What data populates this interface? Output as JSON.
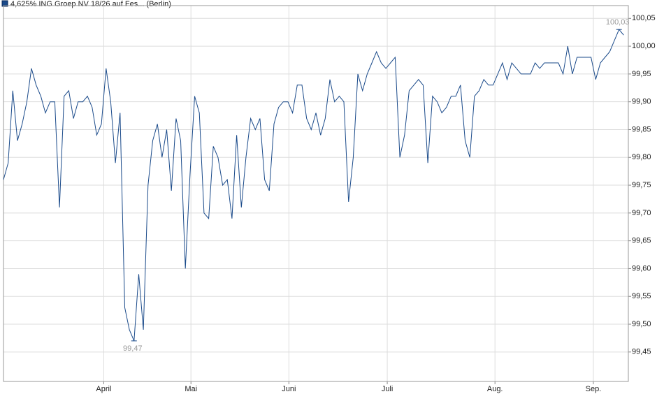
{
  "chart_data": {
    "type": "line",
    "title": "4,625% ING Groep NV 18/26 auf Fes... (Berlin)",
    "series": [
      {
        "name": "4,625% ING Groep NV 18/26 auf Fes... (Berlin)",
        "color": "#1a4a8a",
        "values": [
          99.76,
          99.79,
          99.92,
          99.83,
          99.86,
          99.9,
          99.96,
          99.93,
          99.91,
          99.88,
          99.9,
          99.9,
          99.71,
          99.91,
          99.92,
          99.87,
          99.9,
          99.9,
          99.91,
          99.89,
          99.84,
          99.86,
          99.96,
          99.9,
          99.79,
          99.88,
          99.53,
          99.49,
          99.47,
          99.59,
          99.49,
          99.75,
          99.83,
          99.86,
          99.8,
          99.85,
          99.74,
          99.87,
          99.83,
          99.6,
          99.77,
          99.91,
          99.88,
          99.7,
          99.69,
          99.82,
          99.8,
          99.75,
          99.76,
          99.69,
          99.84,
          99.71,
          99.8,
          99.87,
          99.85,
          99.87,
          99.76,
          99.74,
          99.86,
          99.89,
          99.9,
          99.9,
          99.88,
          99.93,
          99.93,
          99.87,
          99.85,
          99.88,
          99.84,
          99.87,
          99.94,
          99.9,
          99.91,
          99.9,
          99.72,
          99.8,
          99.95,
          99.92,
          99.95,
          99.97,
          99.99,
          99.97,
          99.96,
          99.97,
          99.98,
          99.8,
          99.84,
          99.92,
          99.93,
          99.94,
          99.93,
          99.79,
          99.91,
          99.9,
          99.88,
          99.89,
          99.91,
          99.91,
          99.93,
          99.83,
          99.8,
          99.91,
          99.92,
          99.94,
          99.93,
          99.93,
          99.95,
          99.97,
          99.94,
          99.97,
          99.96,
          99.95,
          99.95,
          99.95,
          99.97,
          99.96,
          99.97,
          99.97,
          99.97,
          99.97,
          99.95,
          100.0,
          99.95,
          99.98,
          99.98,
          99.98,
          99.98,
          99.94,
          99.97,
          99.98,
          99.99,
          100.01,
          100.03,
          100.02
        ]
      }
    ],
    "annotations": [
      {
        "text": "100,03",
        "value": 100.03
      },
      {
        "text": "99,47",
        "value": 99.47
      }
    ],
    "xlim": [
      0,
      134
    ],
    "xticks": [
      {
        "value": 21.5,
        "label": "April"
      },
      {
        "value": 40.2,
        "label": "Mai"
      },
      {
        "value": 61.2,
        "label": "Juni"
      },
      {
        "value": 82.3,
        "label": "Juli"
      },
      {
        "value": 105.4,
        "label": "Aug."
      },
      {
        "value": 126.5,
        "label": "Sep."
      }
    ],
    "ylim": [
      99.397,
      100.073
    ],
    "yticks": [
      {
        "value": 99.45,
        "label": "99,45"
      },
      {
        "value": 99.5,
        "label": "99,50"
      },
      {
        "value": 99.55,
        "label": "99,55"
      },
      {
        "value": 99.6,
        "label": "99,60"
      },
      {
        "value": 99.65,
        "label": "99,65"
      },
      {
        "value": 99.7,
        "label": "99,70"
      },
      {
        "value": 99.75,
        "label": "99,75"
      },
      {
        "value": 99.8,
        "label": "99,80"
      },
      {
        "value": 99.85,
        "label": "99,85"
      },
      {
        "value": 99.9,
        "label": "99,90"
      },
      {
        "value": 99.95,
        "label": "99,95"
      },
      {
        "value": 100.0,
        "label": "100,00"
      },
      {
        "value": 100.05,
        "label": "100,05"
      }
    ],
    "grid": true
  }
}
